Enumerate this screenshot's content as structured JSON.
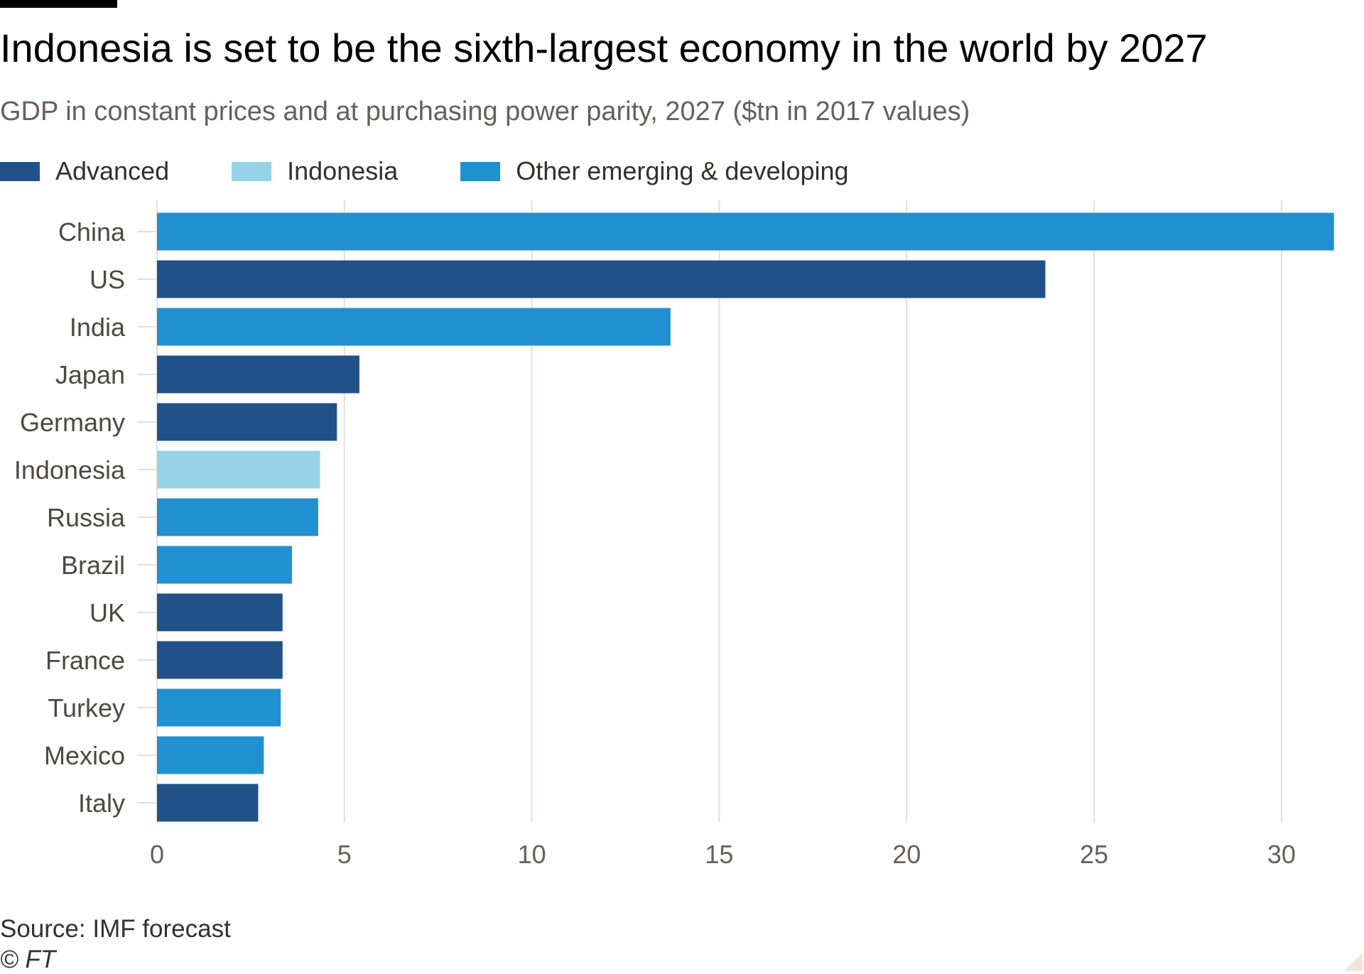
{
  "header": {
    "title": "Indonesia is set to be the sixth-largest economy in the world by 2027",
    "subtitle": "GDP in constant prices and at purchasing power parity, 2027 ($tn in 2017 values)"
  },
  "legend": {
    "items": [
      {
        "label": "Advanced",
        "color": "#205288"
      },
      {
        "label": "Indonesia",
        "color": "#96d3e8"
      },
      {
        "label": "Other emerging & developing",
        "color": "#2090d0"
      }
    ]
  },
  "footer": {
    "source": "Source: IMF forecast",
    "copyright": "© FT"
  },
  "colors": {
    "advanced": "#205288",
    "indonesia": "#96d3e8",
    "other": "#2090d0",
    "grid": "#e6dfd9",
    "tick_text": "#66605c",
    "category_text": "#4d4845"
  },
  "chart_data": {
    "type": "bar",
    "orientation": "horizontal",
    "title": "Indonesia is set to be the sixth-largest economy in the world by 2027",
    "subtitle": "GDP in constant prices and at purchasing power parity, 2027 ($tn in 2017 values)",
    "categories": [
      "China",
      "US",
      "India",
      "Japan",
      "Germany",
      "Indonesia",
      "Russia",
      "Brazil",
      "UK",
      "France",
      "Turkey",
      "Mexico",
      "Italy"
    ],
    "values": [
      31.4,
      23.7,
      13.7,
      5.4,
      4.8,
      4.35,
      4.3,
      3.6,
      3.35,
      3.35,
      3.3,
      2.85,
      2.7
    ],
    "groups": [
      "Other emerging & developing",
      "Advanced",
      "Other emerging & developing",
      "Advanced",
      "Advanced",
      "Indonesia",
      "Other emerging & developing",
      "Other emerging & developing",
      "Advanced",
      "Advanced",
      "Other emerging & developing",
      "Other emerging & developing",
      "Advanced"
    ],
    "xlim": [
      0,
      31.5
    ],
    "xticks": [
      0,
      5,
      10,
      15,
      20,
      25,
      30
    ],
    "xlabel": "",
    "ylabel": "",
    "grid": "vertical",
    "legend_position": "top-left"
  }
}
